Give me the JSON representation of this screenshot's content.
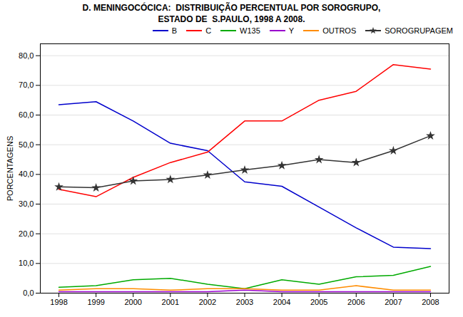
{
  "chart_data": {
    "type": "line",
    "title": "D. MENINGOCÓCICA:  DISTRIBUIÇÃO PERCENTUAL POR SOROGRUPO,\nESTADO DE  S.PAULO, 1998 A 2008.",
    "ylabel": "PORCENTAGENS",
    "x": [
      1998,
      1999,
      2000,
      2001,
      2002,
      2003,
      2004,
      2005,
      2006,
      2007,
      2008
    ],
    "series": [
      {
        "name": "B",
        "color": "#0000CC",
        "values": [
          63.5,
          64.5,
          58.0,
          50.5,
          48.0,
          37.5,
          36.0,
          29.0,
          22.0,
          15.5,
          15.0
        ]
      },
      {
        "name": "C",
        "color": "#FF0000",
        "values": [
          35.0,
          32.5,
          39.0,
          44.0,
          47.5,
          58.0,
          58.0,
          65.0,
          68.0,
          77.0,
          75.5
        ]
      },
      {
        "name": "W135",
        "color": "#00AA00",
        "values": [
          2.0,
          2.5,
          4.5,
          5.0,
          3.0,
          1.5,
          4.5,
          3.0,
          5.5,
          6.0,
          9.0
        ]
      },
      {
        "name": "Y",
        "color": "#9900CC",
        "values": [
          0.5,
          0.5,
          0.5,
          0.5,
          0.5,
          1.0,
          0.5,
          0.5,
          0.5,
          0.5,
          0.5
        ]
      },
      {
        "name": "OUTROS",
        "color": "#FF8C00",
        "values": [
          1.0,
          1.5,
          1.5,
          1.0,
          1.5,
          1.5,
          1.0,
          1.0,
          2.5,
          1.0,
          1.0
        ]
      },
      {
        "name": "SOROGRUPAGEM",
        "color": "#333333",
        "marker": "star",
        "values": [
          35.8,
          35.5,
          37.8,
          38.3,
          39.8,
          41.5,
          43.0,
          45.0,
          44.0,
          48.0,
          53.0
        ]
      }
    ],
    "xlim": [
      1997.5,
      2008.5
    ],
    "xticks": [
      1998,
      1999,
      2000,
      2001,
      2002,
      2003,
      2004,
      2005,
      2006,
      2007,
      2008
    ],
    "ylim": [
      0,
      84
    ],
    "yticks": [
      {
        "value": 0.0,
        "label": "0,0"
      },
      {
        "value": 10.0,
        "label": "10,0"
      },
      {
        "value": 20.0,
        "label": "20,0"
      },
      {
        "value": 30.0,
        "label": "30,0"
      },
      {
        "value": 40.0,
        "label": "40,0"
      },
      {
        "value": 50.0,
        "label": "50,0"
      },
      {
        "value": 60.0,
        "label": "60,0"
      },
      {
        "value": 70.0,
        "label": "70,0"
      },
      {
        "value": 80.0,
        "label": "80,0"
      }
    ],
    "grid": true,
    "legend": "upper right"
  }
}
